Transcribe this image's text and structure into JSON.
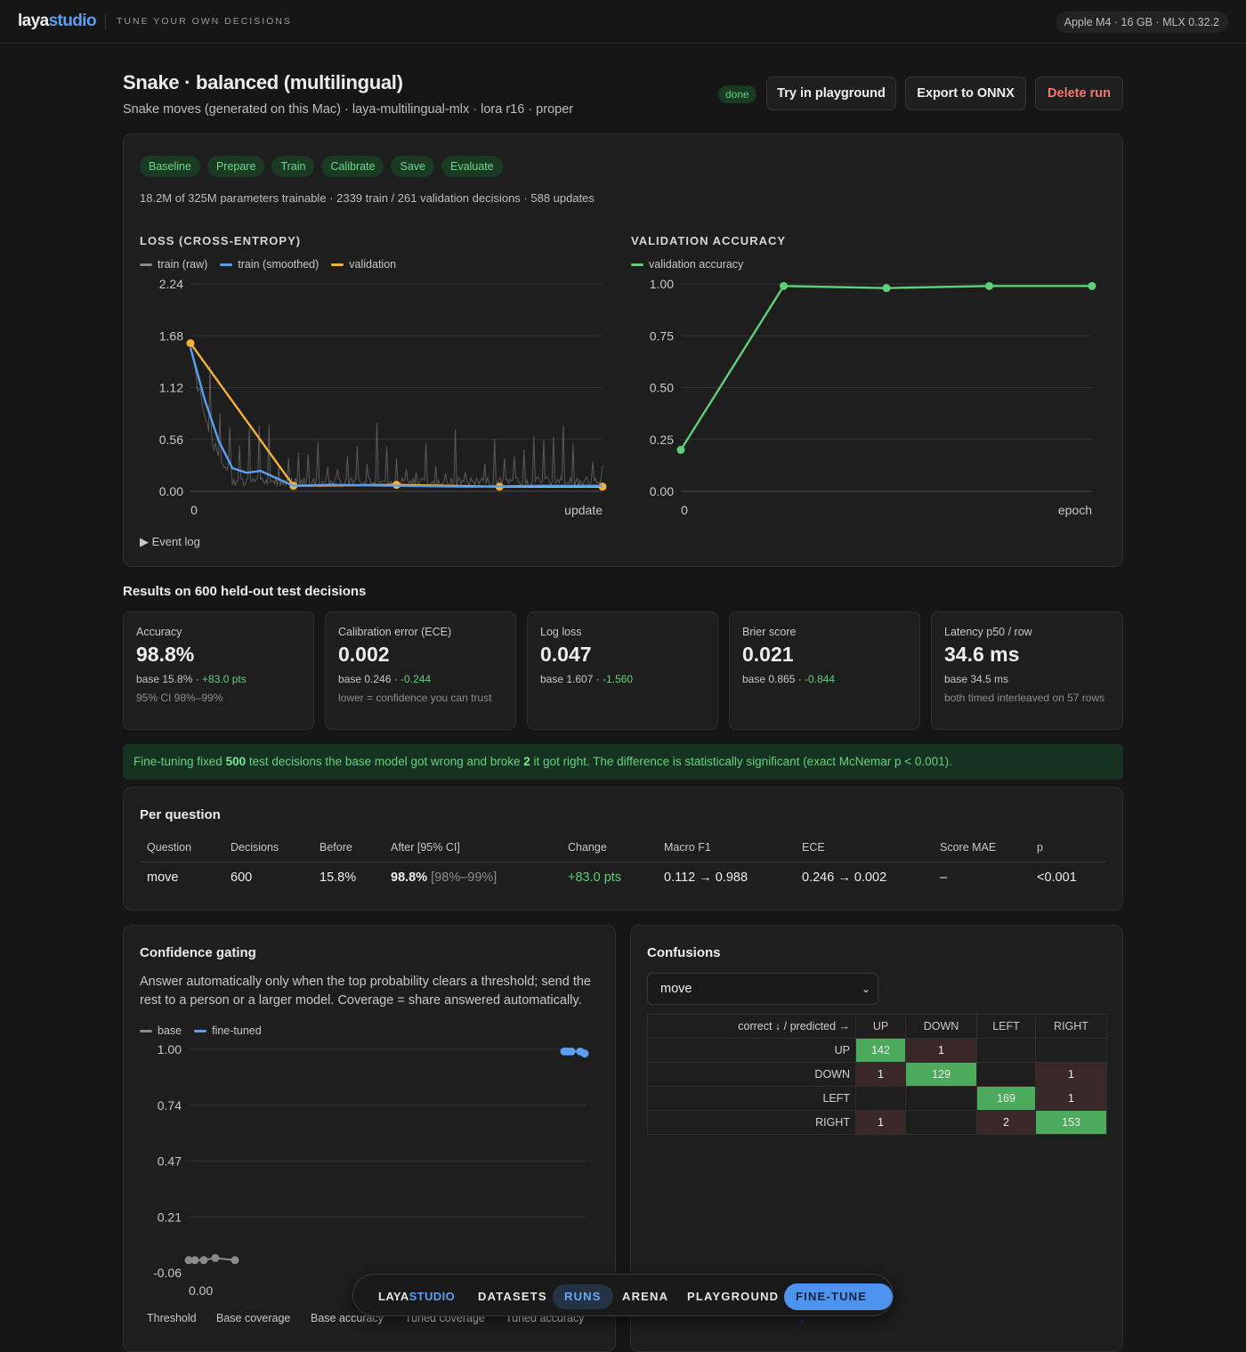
{
  "topbar": {
    "logo_a": "laya",
    "logo_b": "studio",
    "tagline": "TUNE YOUR OWN DECISIONS",
    "hardware": "Apple M4 · 16 GB · MLX 0.32.2"
  },
  "run": {
    "title": "Snake · balanced (multilingual)",
    "subtitle": "Snake moves (generated on this Mac) · laya-multilingual-mlx · lora r16 · proper",
    "status": "done",
    "actions": {
      "playground": "Try in playground",
      "export": "Export to ONNX",
      "delete": "Delete run"
    }
  },
  "training": {
    "stages": [
      "Baseline",
      "Prepare",
      "Train",
      "Calibrate",
      "Save",
      "Evaluate"
    ],
    "stats": "18.2M of 325M parameters trainable · 2339 train / 261 validation decisions · 588 updates",
    "event_log": "▶ Event log"
  },
  "charts": {
    "loss": {
      "title": "LOSS (CROSS-ENTROPY)",
      "legend": [
        "train (raw)",
        "train (smoothed)",
        "validation"
      ],
      "yticks": [
        "2.24",
        "1.68",
        "1.12",
        "0.56",
        "0.00"
      ],
      "x_start": "0",
      "x_label": "update"
    },
    "val_acc": {
      "title": "VALIDATION ACCURACY",
      "legend": [
        "validation accuracy"
      ],
      "yticks": [
        "1.00",
        "0.75",
        "0.50",
        "0.25",
        "0.00"
      ],
      "x_start": "0",
      "x_label": "epoch"
    },
    "gating": {
      "legend": [
        "base",
        "fine-tuned"
      ],
      "yticks": [
        "1.00",
        "0.74",
        "0.47",
        "0.21",
        "-0.06"
      ],
      "x_start": "0.00"
    }
  },
  "chart_data": [
    {
      "type": "line",
      "title": "LOSS (CROSS-ENTROPY)",
      "xlabel": "update",
      "ylim": [
        0,
        2.24
      ],
      "xlim": [
        0,
        588
      ],
      "grid": true,
      "legend": "top-left",
      "series": [
        {
          "name": "validation",
          "x": [
            0,
            147,
            294,
            441,
            588
          ],
          "y": [
            1.6,
            0.06,
            0.07,
            0.05,
            0.05
          ]
        },
        {
          "name": "train (smoothed)",
          "x": [
            0,
            20,
            40,
            60,
            80,
            100,
            147,
            200,
            300,
            400,
            500,
            588
          ],
          "y": [
            1.55,
            1.0,
            0.55,
            0.25,
            0.2,
            0.22,
            0.06,
            0.07,
            0.06,
            0.05,
            0.06,
            0.06
          ]
        }
      ]
    },
    {
      "type": "line",
      "title": "VALIDATION ACCURACY",
      "xlabel": "epoch",
      "ylim": [
        0,
        1
      ],
      "xlim": [
        0,
        4
      ],
      "grid": true,
      "legend": "top-left",
      "series": [
        {
          "name": "validation accuracy",
          "x": [
            0,
            1,
            2,
            3,
            4
          ],
          "y": [
            0.2,
            0.99,
            0.98,
            0.99,
            0.99
          ]
        }
      ]
    },
    {
      "type": "line",
      "ylim": [
        -0.06,
        1
      ],
      "grid": true,
      "legend": "top-left",
      "series": [
        {
          "name": "base",
          "x": [
            0,
            1,
            2,
            3,
            4
          ],
          "y": [
            0.0,
            0.0,
            0.0,
            0.01,
            0.0
          ]
        },
        {
          "name": "fine-tuned",
          "x": [
            0,
            1,
            2,
            3,
            4
          ],
          "y": [
            0.99,
            0.99,
            0.99,
            0.99,
            0.98
          ]
        }
      ]
    }
  ],
  "results": {
    "heading": "Results on 600 held-out test decisions",
    "cards": [
      {
        "label": "Accuracy",
        "value": "98.8%",
        "base": "base 15.8% · ",
        "delta": "+83.0 pts",
        "note": "95% CI 98%–99%"
      },
      {
        "label": "Calibration error (ECE)",
        "value": "0.002",
        "base": "base 0.246 · ",
        "delta": "-0.244",
        "note": "lower = confidence you can trust"
      },
      {
        "label": "Log loss",
        "value": "0.047",
        "base": "base 1.607 · ",
        "delta": "-1.560",
        "note": ""
      },
      {
        "label": "Brier score",
        "value": "0.021",
        "base": "base 0.865 · ",
        "delta": "-0.844",
        "note": ""
      },
      {
        "label": "Latency p50 / row",
        "value": "34.6 ms",
        "base": "base 34.5 ms",
        "delta": "",
        "note": "both timed interleaved on 57 rows"
      }
    ],
    "banner": {
      "p1": "Fine-tuning fixed ",
      "fixed": "500",
      "p2": " test decisions the base model got wrong and broke ",
      "broke": "2",
      "p3": " it got right. The difference is statistically significant (exact McNemar p < 0.001)."
    }
  },
  "per_question": {
    "title": "Per question",
    "headers": [
      "Question",
      "Decisions",
      "Before",
      "After [95% CI]",
      "Change",
      "Macro F1",
      "ECE",
      "Score MAE",
      "p"
    ],
    "row": {
      "question": "move",
      "decisions": "600",
      "before": "15.8%",
      "after": "98.8%",
      "ci": "[98%–99%]",
      "change": "+83.0 pts",
      "f1": "0.112 → 0.988",
      "ece": "0.246 → 0.002",
      "mae": "–",
      "p": "<0.001"
    }
  },
  "gating": {
    "title": "Confidence gating",
    "desc": "Answer automatically only when the top probability clears a threshold; send the rest to a person or a larger model. Coverage = share answered automatically.",
    "table_headers": [
      "Threshold",
      "Base coverage",
      "Base accuracy",
      "Tuned coverage",
      "Tuned accuracy"
    ]
  },
  "confusions": {
    "title": "Confusions",
    "select": "move",
    "corner": "correct ↓ / predicted →",
    "labels": [
      "UP",
      "DOWN",
      "LEFT",
      "RIGHT"
    ],
    "matrix": [
      [
        "142",
        "1",
        "",
        ""
      ],
      [
        "1",
        "129",
        "",
        "1"
      ],
      [
        "",
        "",
        "169",
        "1"
      ],
      [
        "1",
        "",
        "2",
        "153"
      ]
    ]
  },
  "nav": {
    "brand_a": "LAYA",
    "brand_b": "STUDIO",
    "datasets": "DATASETS",
    "runs": "RUNS",
    "arena": "ARENA",
    "playground": "PLAYGROUND",
    "finetune": "FINE-TUNE ↗"
  },
  "colors": {
    "accent": "#5b9ff0",
    "success": "#5fd07a",
    "validation": "#f2b13d",
    "danger": "#f07a72",
    "raw": "#8a8a8a"
  }
}
